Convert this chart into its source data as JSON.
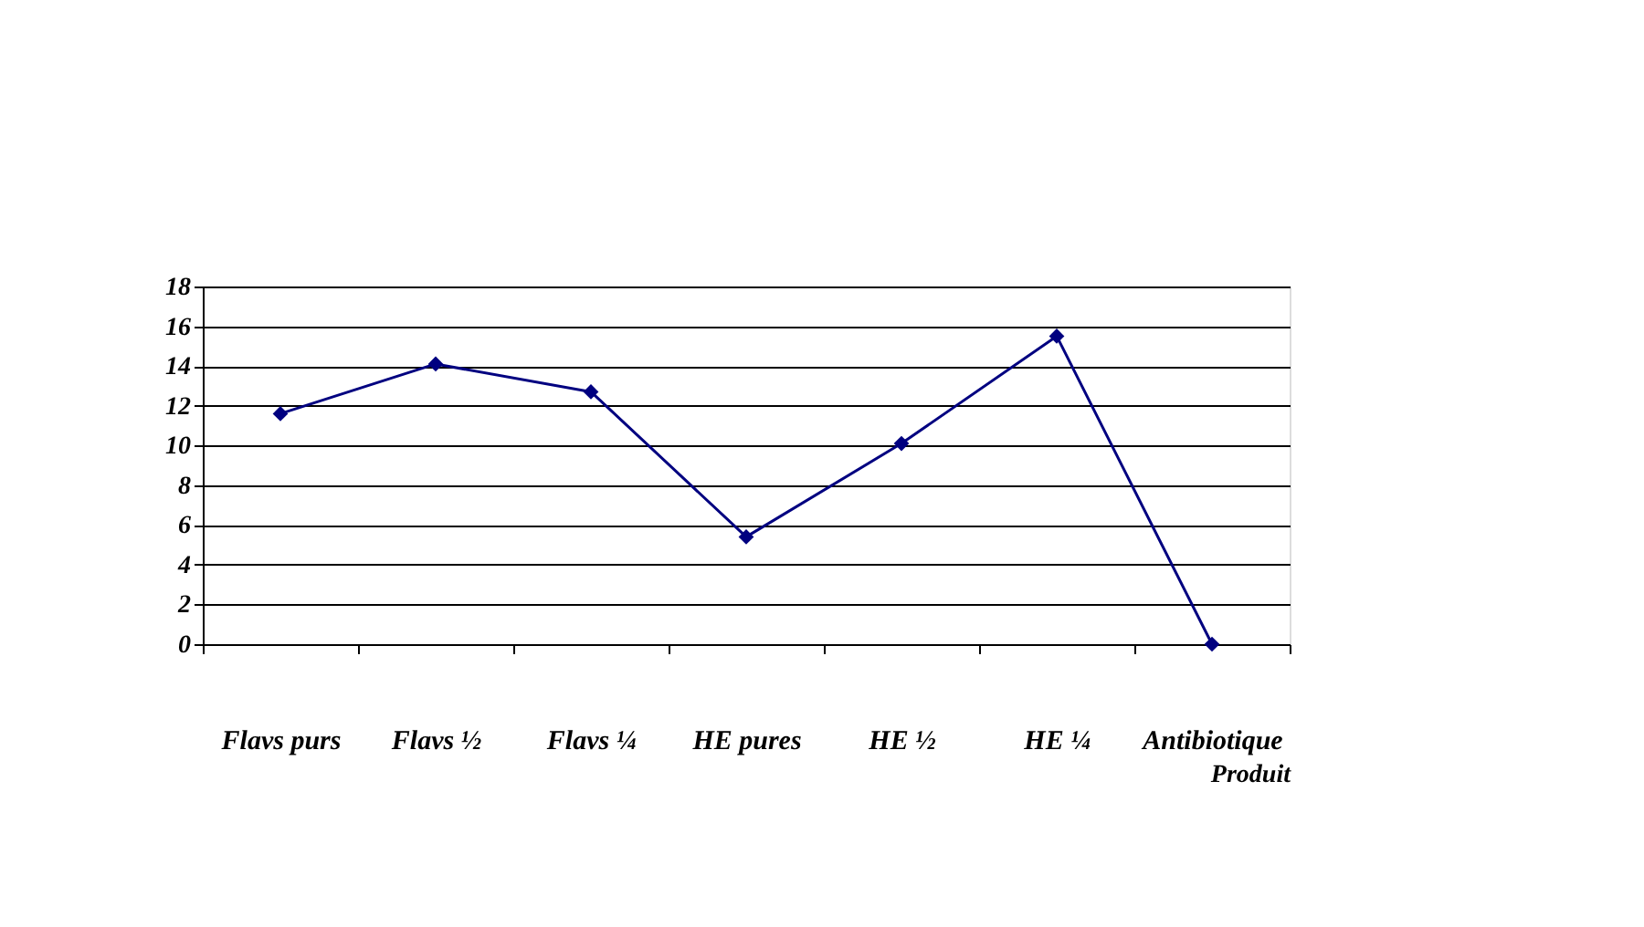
{
  "chart_data": {
    "type": "line",
    "xlabel": "Produit",
    "categories": [
      "Flavs purs",
      "Flavs ½",
      "Flavs ¼",
      "HE pures",
      "HE ½",
      "HE ¼",
      "Antibiotique"
    ],
    "series": [
      {
        "color": "#000080",
        "values": [
          11.6,
          14.1,
          12.7,
          5.4,
          10.1,
          15.5,
          0
        ]
      }
    ],
    "ylim": [
      0,
      18
    ],
    "yticks": [
      0,
      2,
      4,
      6,
      8,
      10,
      12,
      14,
      16,
      18
    ],
    "grid": "y",
    "marker": "diamond",
    "line_style": "solid"
  }
}
